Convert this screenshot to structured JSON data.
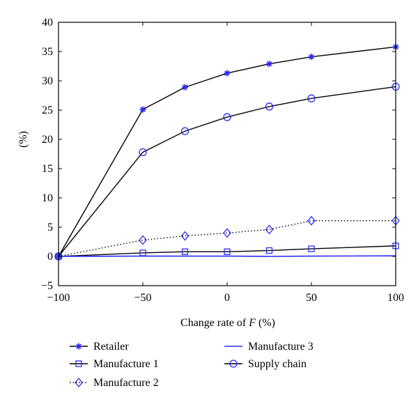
{
  "chart_data": {
    "type": "line",
    "x": [
      -100,
      -50,
      -25,
      0,
      25,
      50,
      100
    ],
    "xlabel_prefix": "Change rate of ",
    "xlabel_var": "F",
    "xlabel_suffix": " (%)",
    "ylabel": "(%)",
    "xlim": [
      -100,
      100
    ],
    "ylim": [
      -5,
      40
    ],
    "xticks": [
      -100,
      -50,
      0,
      50,
      100
    ],
    "yticks": [
      -5,
      0,
      5,
      10,
      15,
      20,
      25,
      30,
      35,
      40
    ],
    "xtick_labels": [
      "−100",
      "−50",
      "0",
      "50",
      "100"
    ],
    "ytick_labels": [
      "−5",
      "0",
      "5",
      "10",
      "15",
      "20",
      "25",
      "30",
      "35",
      "40"
    ],
    "grid": false,
    "legend_position": "bottom",
    "series": [
      {
        "name": "Retailer",
        "values": [
          0,
          25.1,
          28.9,
          31.3,
          32.9,
          34.1,
          35.8
        ],
        "line_color": "#000000",
        "marker_color": "#2a2af0",
        "line_style": "solid",
        "marker": "star"
      },
      {
        "name": "Manufacture 1",
        "values": [
          0,
          0.6,
          0.8,
          0.8,
          1.0,
          1.3,
          1.8
        ],
        "line_color": "#000000",
        "marker_color": "#2a2af0",
        "line_style": "solid",
        "marker": "square"
      },
      {
        "name": "Manufacture 2",
        "values": [
          0,
          2.8,
          3.5,
          4.0,
          4.6,
          6.1,
          6.1
        ],
        "line_color": "#000000",
        "marker_color": "#2a2af0",
        "line_style": "dotted",
        "marker": "diamond"
      },
      {
        "name": "Manufacture 3",
        "values": [
          0,
          0.05,
          0.05,
          0.05,
          0,
          0.05,
          0.1
        ],
        "line_color": "#2a2af0",
        "marker_color": "#2a2af0",
        "line_style": "solid",
        "marker": "none"
      },
      {
        "name": "Supply chain",
        "values": [
          0,
          17.8,
          21.4,
          23.8,
          25.6,
          27.0,
          29.0
        ],
        "line_color": "#000000",
        "marker_color": "#2a2af0",
        "line_style": "solid",
        "marker": "circle"
      }
    ],
    "legend_columns": [
      [
        "Retailer",
        "Manufacture 1",
        "Manufacture 2"
      ],
      [
        "Manufacture 3",
        "Supply chain"
      ]
    ]
  }
}
